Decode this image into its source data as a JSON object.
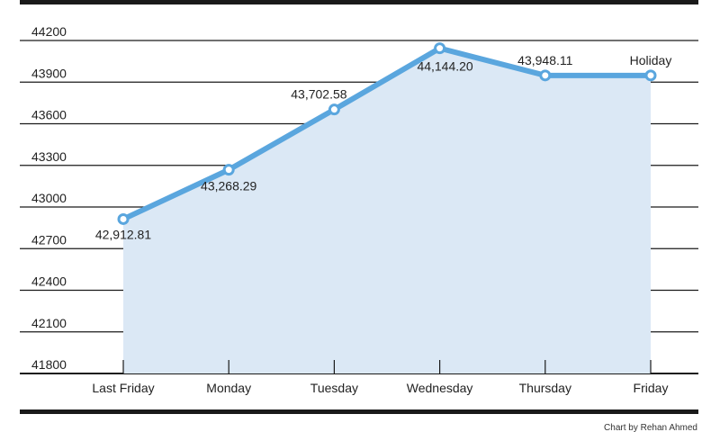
{
  "chart_data": {
    "type": "line",
    "title": "",
    "xlabel": "",
    "ylabel": "",
    "categories": [
      "Last Friday",
      "Monday",
      "Tuesday",
      "Wednesday",
      "Thursday",
      "Friday"
    ],
    "values": [
      42912.81,
      43268.29,
      43702.58,
      44144.2,
      43948.11,
      43948.11
    ],
    "data_labels": [
      "42,912.81",
      "43,268.29",
      "43,702.58",
      "44,144.20",
      "43,948.11",
      "Holiday"
    ],
    "y_ticks": [
      41800,
      42100,
      42400,
      42700,
      43000,
      43300,
      43600,
      43900,
      44200
    ],
    "ylim": [
      41800,
      44200
    ],
    "grid": true,
    "legend": "none",
    "colors": {
      "line": "#5aa6de",
      "area": "#dbe8f5",
      "marker_fill": "#ffffff",
      "grid": "#1a1a1a",
      "frame": "#1a1a1a"
    }
  },
  "credit": "Chart by Rehan Ahmed"
}
